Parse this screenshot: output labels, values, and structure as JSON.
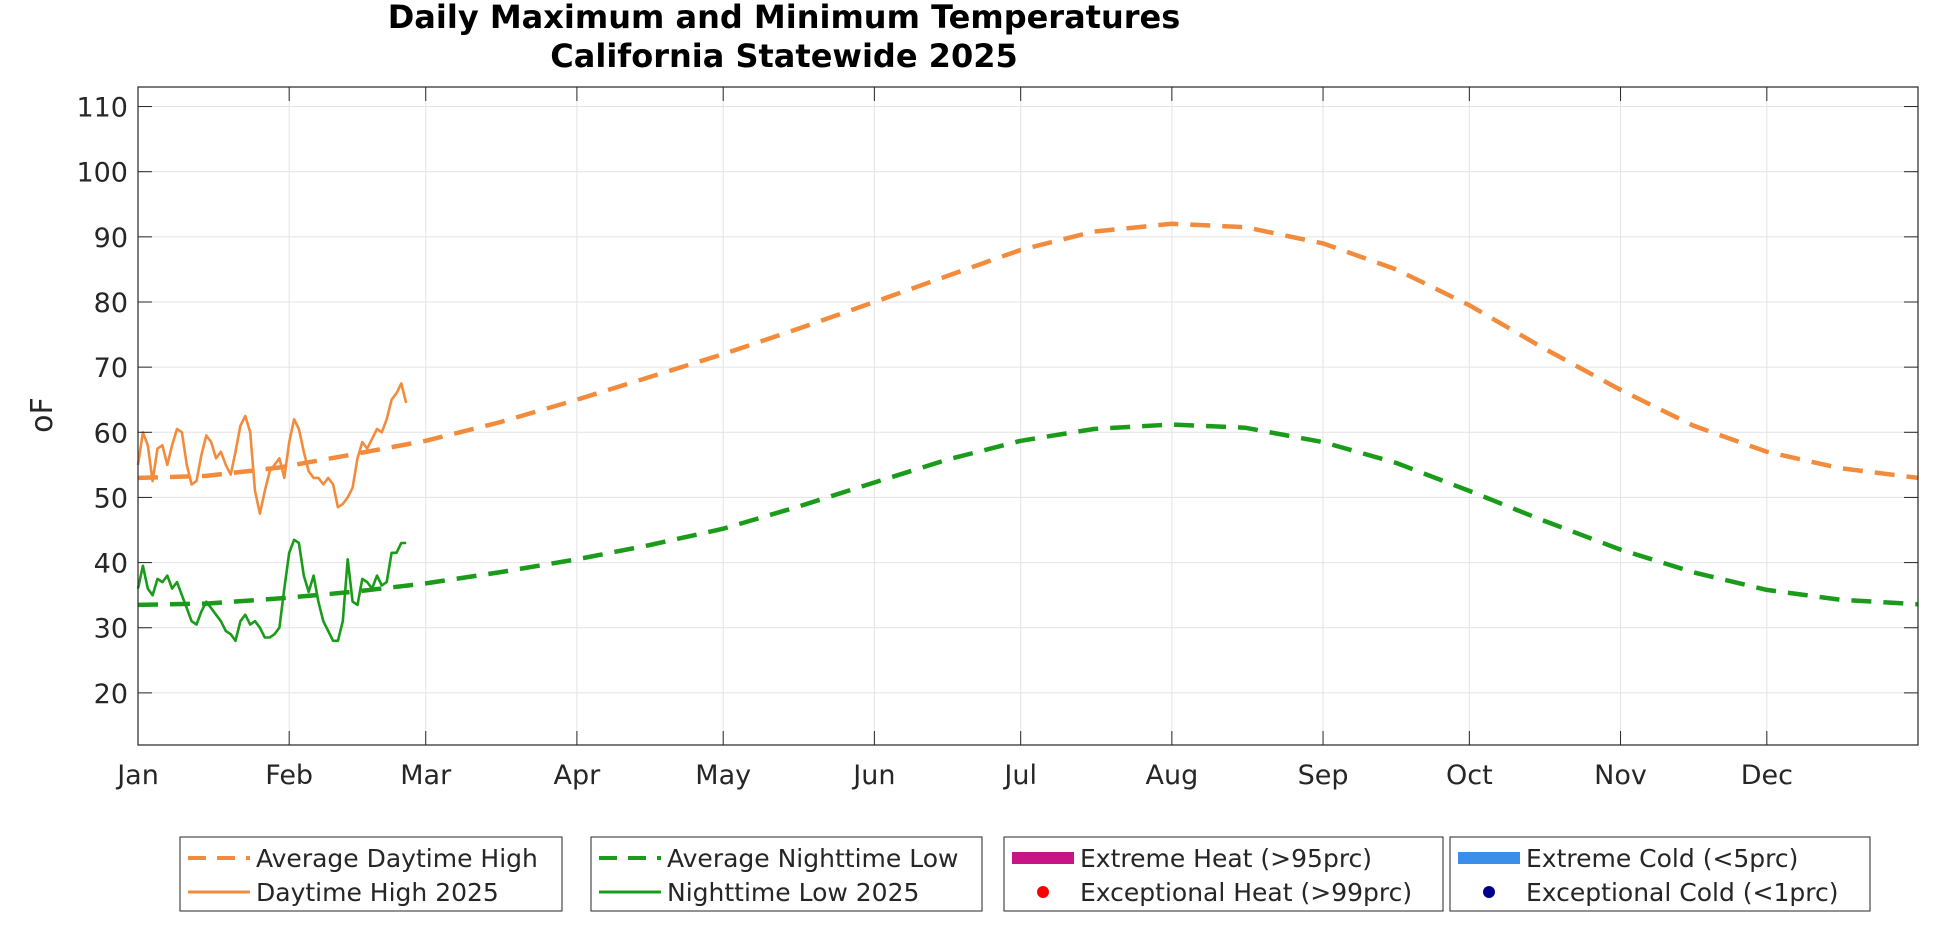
{
  "chart_data": {
    "type": "line",
    "title": [
      "Daily Maximum and Minimum Temperatures",
      "California Statewide 2025"
    ],
    "ylabel": "oF",
    "xlabel": "",
    "ylim": [
      12,
      113
    ],
    "xlim": [
      1,
      366
    ],
    "grid": true,
    "yticks": [
      20,
      30,
      40,
      50,
      60,
      70,
      80,
      90,
      100,
      110
    ],
    "xticks": [
      {
        "label": "Jan",
        "day": 1
      },
      {
        "label": "Feb",
        "day": 32
      },
      {
        "label": "Mar",
        "day": 60
      },
      {
        "label": "Apr",
        "day": 91
      },
      {
        "label": "May",
        "day": 121
      },
      {
        "label": "Jun",
        "day": 152
      },
      {
        "label": "Jul",
        "day": 182
      },
      {
        "label": "Aug",
        "day": 213
      },
      {
        "label": "Sep",
        "day": 244
      },
      {
        "label": "Oct",
        "day": 274
      },
      {
        "label": "Nov",
        "day": 305
      },
      {
        "label": "Dec",
        "day": 335
      }
    ],
    "legend_placement": "bottom",
    "series": [
      {
        "name": "Average Daytime High",
        "style": "dashed",
        "color": "#f28c3c",
        "x": [
          1,
          15,
          30,
          45,
          60,
          75,
          91,
          106,
          121,
          136,
          152,
          167,
          182,
          197,
          213,
          228,
          244,
          259,
          274,
          289,
          305,
          320,
          335,
          350,
          366
        ],
        "y": [
          53.0,
          53.3,
          54.6,
          56.6,
          58.7,
          61.5,
          65.0,
          68.5,
          72.0,
          75.8,
          80.0,
          84.0,
          88.0,
          90.8,
          92.0,
          91.5,
          89.0,
          85.0,
          79.5,
          73.0,
          66.5,
          61.0,
          57.0,
          54.5,
          53.0
        ]
      },
      {
        "name": "Daytime High 2025",
        "style": "solid",
        "color": "#f28c3c",
        "x": [
          1,
          2,
          3,
          4,
          5,
          6,
          7,
          8,
          9,
          10,
          11,
          12,
          13,
          14,
          15,
          16,
          17,
          18,
          19,
          20,
          21,
          22,
          23,
          24,
          25,
          26,
          27,
          28,
          29,
          30,
          31,
          32,
          33,
          34,
          35,
          36,
          37,
          38,
          39,
          40,
          41,
          42,
          43,
          44,
          45,
          46,
          47,
          48,
          49,
          50,
          51,
          52,
          53,
          54,
          55,
          56
        ],
        "y": [
          55.0,
          60.0,
          58.0,
          52.5,
          57.5,
          58.0,
          55.0,
          58.0,
          60.5,
          60.0,
          55.0,
          52.0,
          52.5,
          56.5,
          59.5,
          58.5,
          56.0,
          57.0,
          55.0,
          53.5,
          57.0,
          61.0,
          62.5,
          60.0,
          51.0,
          47.5,
          51.0,
          54.0,
          55.0,
          56.0,
          53.0,
          58.5,
          62.0,
          60.5,
          57.0,
          54.0,
          53.0,
          53.0,
          52.0,
          53.0,
          52.0,
          48.5,
          49.0,
          50.0,
          51.5,
          56.0,
          58.5,
          57.5,
          59.0,
          60.5,
          60.0,
          62.0,
          65.0,
          66.0,
          67.5,
          64.5
        ]
      },
      {
        "name": "Average Nighttime Low",
        "style": "dashed",
        "color": "#1a9c1a",
        "x": [
          1,
          15,
          30,
          45,
          60,
          75,
          91,
          106,
          121,
          136,
          152,
          167,
          182,
          197,
          213,
          228,
          244,
          259,
          274,
          289,
          305,
          320,
          335,
          350,
          366
        ],
        "y": [
          33.5,
          33.7,
          34.5,
          35.5,
          36.8,
          38.5,
          40.5,
          42.7,
          45.2,
          48.5,
          52.3,
          55.8,
          58.7,
          60.5,
          61.2,
          60.7,
          58.5,
          55.3,
          51.0,
          46.5,
          42.0,
          38.5,
          35.8,
          34.3,
          33.6
        ]
      },
      {
        "name": "Nighttime Low 2025",
        "style": "solid",
        "color": "#1a9c1a",
        "x": [
          1,
          2,
          3,
          4,
          5,
          6,
          7,
          8,
          9,
          10,
          11,
          12,
          13,
          14,
          15,
          16,
          17,
          18,
          19,
          20,
          21,
          22,
          23,
          24,
          25,
          26,
          27,
          28,
          29,
          30,
          31,
          32,
          33,
          34,
          35,
          36,
          37,
          38,
          39,
          40,
          41,
          42,
          43,
          44,
          45,
          46,
          47,
          48,
          49,
          50,
          51,
          52,
          53,
          54,
          55,
          56
        ],
        "y": [
          36.0,
          39.5,
          36.0,
          35.0,
          37.5,
          37.0,
          38.0,
          36.0,
          37.0,
          35.0,
          33.0,
          31.0,
          30.5,
          32.5,
          34.0,
          33.0,
          32.0,
          31.0,
          29.5,
          29.0,
          28.0,
          31.0,
          32.0,
          30.5,
          31.0,
          30.0,
          28.5,
          28.5,
          29.0,
          30.0,
          36.0,
          41.5,
          43.5,
          43.0,
          38.0,
          35.5,
          38.0,
          34.0,
          31.0,
          29.5,
          28.0,
          28.0,
          31.0,
          40.5,
          34.0,
          33.5,
          37.5,
          37.0,
          36.0,
          38.0,
          36.5,
          37.0,
          41.5,
          41.5,
          43.0,
          43.0
        ]
      },
      {
        "name": "Extreme Heat (>95prc)",
        "style": "thick",
        "color": "#c71585",
        "x": [],
        "y": []
      },
      {
        "name": "Exceptional Heat (>99prc)",
        "style": "marker",
        "color": "#ff0000",
        "x": [],
        "y": []
      },
      {
        "name": "Extreme Cold (<5prc)",
        "style": "thick",
        "color": "#3b8eea",
        "x": [],
        "y": []
      },
      {
        "name": "Exceptional Cold (<1prc)",
        "style": "marker",
        "color": "#00008b",
        "x": [],
        "y": []
      }
    ]
  }
}
